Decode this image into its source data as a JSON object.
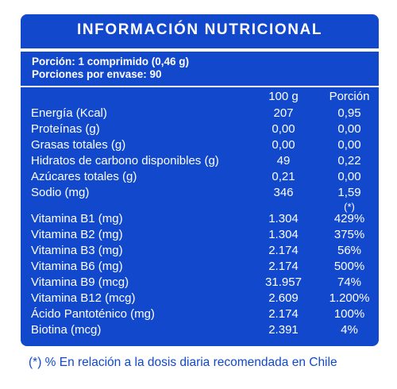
{
  "title": "INFORMACIÓN NUTRICIONAL",
  "serving": {
    "portion": "Porción: 1 comprimido (0,46 g)",
    "per_container": "Porciones por envase: 90"
  },
  "columns": {
    "per100": "100 g",
    "perPortion": "Porción"
  },
  "macros": [
    {
      "name": "Energía (Kcal)",
      "per100": "207",
      "perPortion": "0,95"
    },
    {
      "name": "Proteínas (g)",
      "per100": "0,00",
      "perPortion": "0,00"
    },
    {
      "name": "Grasas totales (g)",
      "per100": "0,00",
      "perPortion": "0,00"
    },
    {
      "name": "Hidratos de carbono disponibles (g)",
      "per100": "49",
      "perPortion": "0,22"
    },
    {
      "name": "Azúcares totales (g)",
      "per100": "0,21",
      "perPortion": "0,00"
    },
    {
      "name": "Sodio (mg)",
      "per100": "346",
      "perPortion": "1,59"
    }
  ],
  "rda_marker": "(*)",
  "vitamins": [
    {
      "name": "Vitamina B1 (mg)",
      "per100": "1.304",
      "perPortion": "429%"
    },
    {
      "name": "Vitamina B2 (mg)",
      "per100": "1.304",
      "perPortion": "375%"
    },
    {
      "name": "Vitamina B3 (mg)",
      "per100": "2.174",
      "perPortion": "56%"
    },
    {
      "name": "Vitamina B6 (mg)",
      "per100": "2.174",
      "perPortion": "500%"
    },
    {
      "name": "Vitamina B9 (mcg)",
      "per100": "31.957",
      "perPortion": "74%"
    },
    {
      "name": "Vitamina B12 (mcg)",
      "per100": "2.609",
      "perPortion": "1.200%"
    },
    {
      "name": "Ácido Pantoténico (mg)",
      "per100": "2.174",
      "perPortion": "100%"
    },
    {
      "name": "Biotina (mcg)",
      "per100": "2.391",
      "perPortion": "4%"
    }
  ],
  "footnote": "(*) % En relación a la dosis diaria recomendada en Chile",
  "colors": {
    "panel": "#1148cc",
    "text": "#ffffff"
  }
}
